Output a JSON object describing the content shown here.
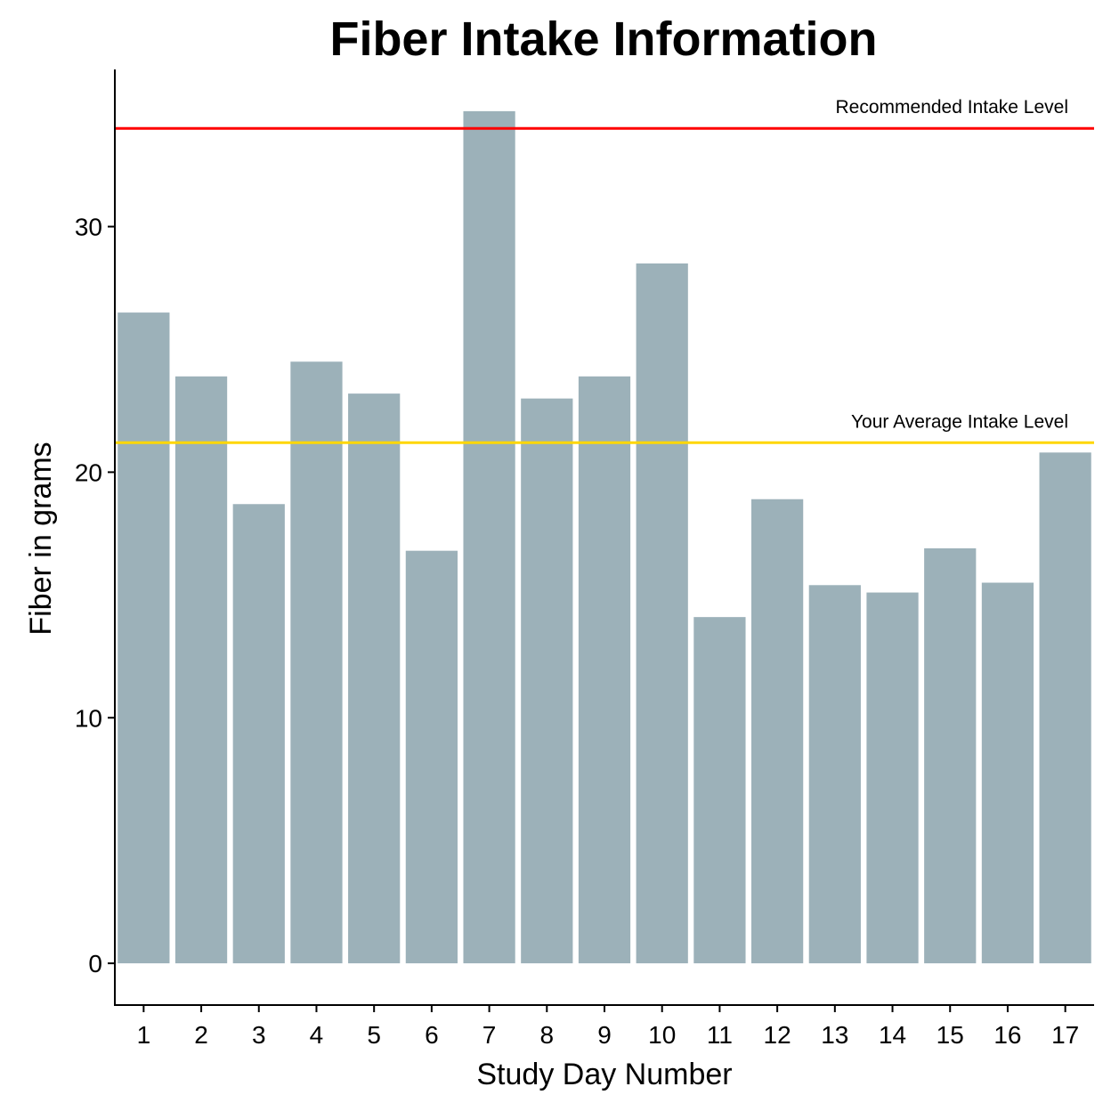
{
  "chart_data": {
    "type": "bar",
    "title": "Fiber Intake Information",
    "xlabel": "Study Day Number",
    "ylabel": "Fiber in grams",
    "categories": [
      "1",
      "2",
      "3",
      "4",
      "5",
      "6",
      "7",
      "8",
      "9",
      "10",
      "11",
      "12",
      "13",
      "14",
      "15",
      "16",
      "17"
    ],
    "values": [
      26.5,
      23.9,
      18.7,
      24.5,
      23.2,
      16.8,
      34.7,
      23.0,
      23.9,
      28.5,
      14.1,
      18.9,
      15.4,
      15.1,
      16.9,
      15.5,
      20.8
    ],
    "ylim": [
      -1.7,
      36.4
    ],
    "yticks": [
      0,
      10,
      20,
      30
    ],
    "bar_color": "#9cb1b9",
    "reference_lines": [
      {
        "name": "Recommended Intake Level",
        "value": 34.0,
        "color": "#ff0000"
      },
      {
        "name": "Your Average Intake Level",
        "value": 21.2,
        "color": "#ffd700"
      }
    ],
    "grid": false,
    "legend": "none"
  }
}
